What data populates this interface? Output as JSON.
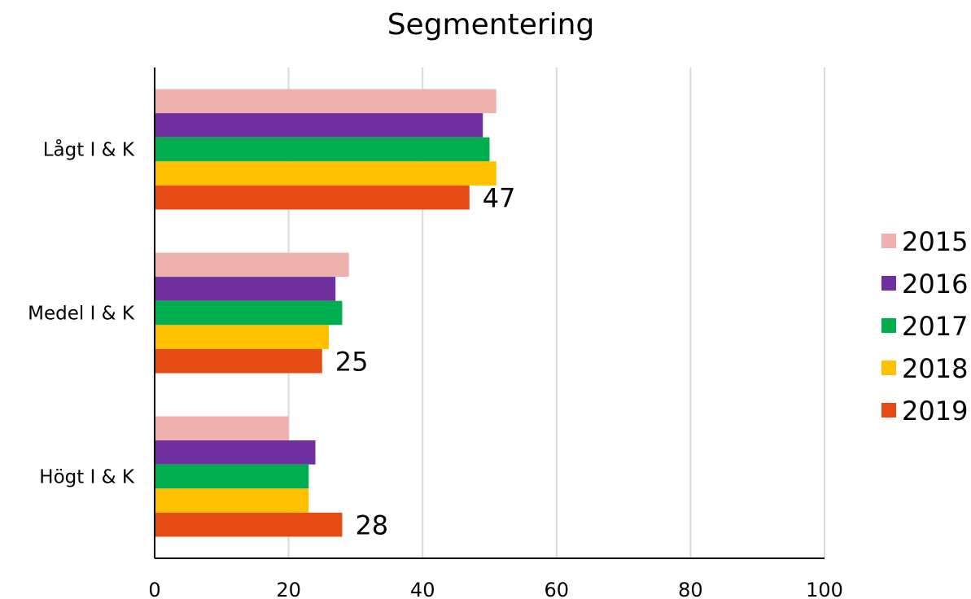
{
  "chart_data": {
    "type": "bar",
    "orientation": "horizontal",
    "title": "Segmentering",
    "xlabel": "",
    "ylabel": "",
    "categories": [
      "Lågt I & K",
      "Medel I & K",
      "Högt I & K"
    ],
    "series": [
      {
        "name": "2015",
        "color": "#efb1ad",
        "values": [
          51,
          29,
          20
        ]
      },
      {
        "name": "2016",
        "color": "#7030a0",
        "values": [
          49,
          27,
          24
        ]
      },
      {
        "name": "2017",
        "color": "#00b050",
        "values": [
          50,
          28,
          23
        ]
      },
      {
        "name": "2018",
        "color": "#ffc000",
        "values": [
          51,
          26,
          23
        ]
      },
      {
        "name": "2019",
        "color": "#e54b13",
        "values": [
          47,
          25,
          28
        ]
      }
    ],
    "data_labels": {
      "series": "2019",
      "values": [
        "47",
        "25",
        "28"
      ]
    },
    "xlim": [
      0,
      100
    ],
    "xticks": [
      "0",
      "20",
      "40",
      "60",
      "80",
      "100"
    ],
    "grid": true,
    "legend_position": "right"
  }
}
